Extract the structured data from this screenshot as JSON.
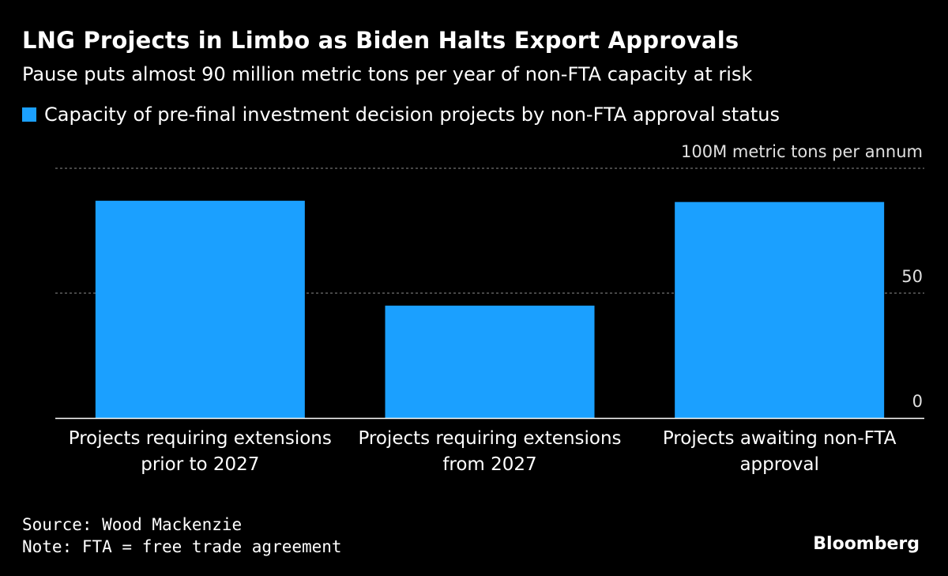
{
  "colors": {
    "background": "#000000",
    "bar": "#1ba0ff",
    "text": "#ffffff",
    "axis_text": "#e0e0e0",
    "grid": "#8c8c8c",
    "baseline": "#ffffff"
  },
  "chart_data": {
    "type": "bar",
    "title": "LNG Projects in Limbo as Biden Halts Export Approvals",
    "subtitle": "Pause puts almost 90 million metric tons per year of non-FTA capacity at risk",
    "legend": [
      "Capacity of pre-final investment decision projects by non-FTA approval status"
    ],
    "categories": [
      [
        "Projects requiring extensions",
        "prior to 2027"
      ],
      [
        "Projects requiring extensions",
        "from 2027"
      ],
      [
        "Projects awaiting non-FTA",
        "approval"
      ]
    ],
    "values": [
      87,
      45,
      86.5
    ],
    "ylim": [
      0,
      100
    ],
    "yticks": [
      {
        "value": 100,
        "label": "100M metric tons per annum"
      },
      {
        "value": 50,
        "label": "50"
      },
      {
        "value": 0,
        "label": "0"
      }
    ],
    "grid": true
  },
  "footer": {
    "source": "Source: Wood Mackenzie",
    "note": "Note: FTA = free trade agreement",
    "brand": "Bloomberg"
  }
}
